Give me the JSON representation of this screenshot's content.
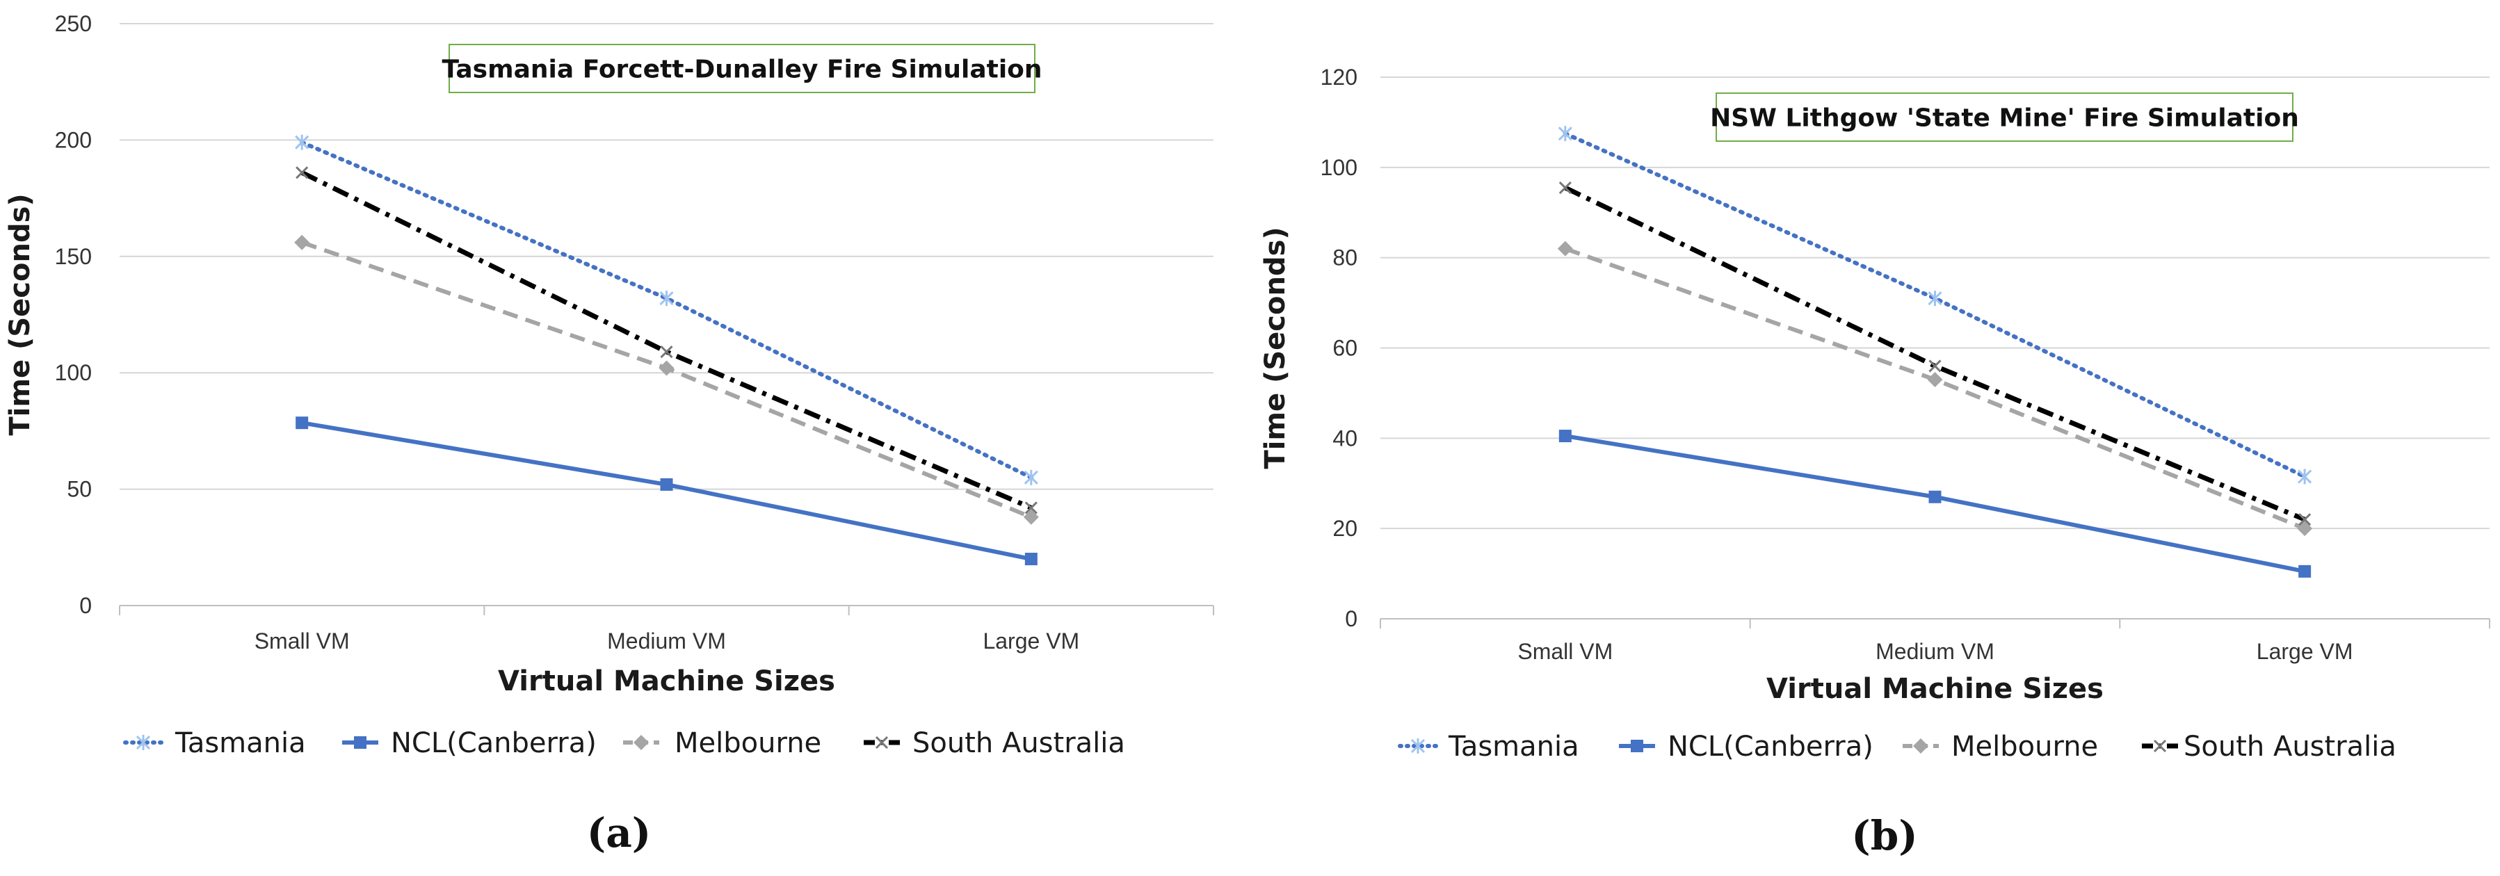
{
  "chart_data": [
    {
      "type": "line",
      "title": "Tasmania  Forcett-Dunalley Fire Simulation",
      "xlabel": "Virtual Machine Sizes",
      "ylabel": "Time (Seconds)",
      "categories": [
        "Small VM",
        "Medium VM",
        "Large VM"
      ],
      "ylim": [
        0,
        250
      ],
      "yticks": [
        0,
        50,
        100,
        150,
        200,
        250
      ],
      "grid": true,
      "legend_position": "bottom",
      "caption": "(a)",
      "series": [
        {
          "name": "Tasmania",
          "values": [
            199,
            132,
            55
          ],
          "color": "#4472c4",
          "style": "dotted",
          "marker": "star"
        },
        {
          "name": "NCL(Canberra)",
          "values": [
            78.5,
            52,
            20
          ],
          "color": "#4472c4",
          "style": "solid",
          "marker": "square"
        },
        {
          "name": "Melbourne",
          "values": [
            156,
            102,
            38
          ],
          "color": "#a5a5a5",
          "style": "dashed",
          "marker": "diamond"
        },
        {
          "name": "South Australia",
          "values": [
            186,
            109,
            42
          ],
          "color": "#000000",
          "style": "dashdot",
          "marker": "x"
        }
      ]
    },
    {
      "type": "line",
      "title": "NSW Lithgow 'State Mine'  Fire Simulation",
      "xlabel": "Virtual Machine Sizes",
      "ylabel": "Time (Seconds)",
      "categories": [
        "Small VM",
        "Medium VM",
        "Large VM"
      ],
      "ylim": [
        0,
        120
      ],
      "yticks": [
        0,
        20,
        40,
        60,
        80,
        100,
        120
      ],
      "grid": true,
      "legend_position": "bottom",
      "caption": "(b)",
      "series": [
        {
          "name": "Tasmania",
          "values": [
            107.5,
            71,
            31.5
          ],
          "color": "#4472c4",
          "style": "dotted",
          "marker": "star"
        },
        {
          "name": "NCL(Canberra)",
          "values": [
            40.5,
            27,
            10.5
          ],
          "color": "#4472c4",
          "style": "solid",
          "marker": "square"
        },
        {
          "name": "Melbourne",
          "values": [
            82,
            53,
            20
          ],
          "color": "#a5a5a5",
          "style": "dashed",
          "marker": "diamond"
        },
        {
          "name": "South Australia",
          "values": [
            95.5,
            56,
            22
          ],
          "color": "#000000",
          "style": "dashdot",
          "marker": "x"
        }
      ]
    }
  ]
}
